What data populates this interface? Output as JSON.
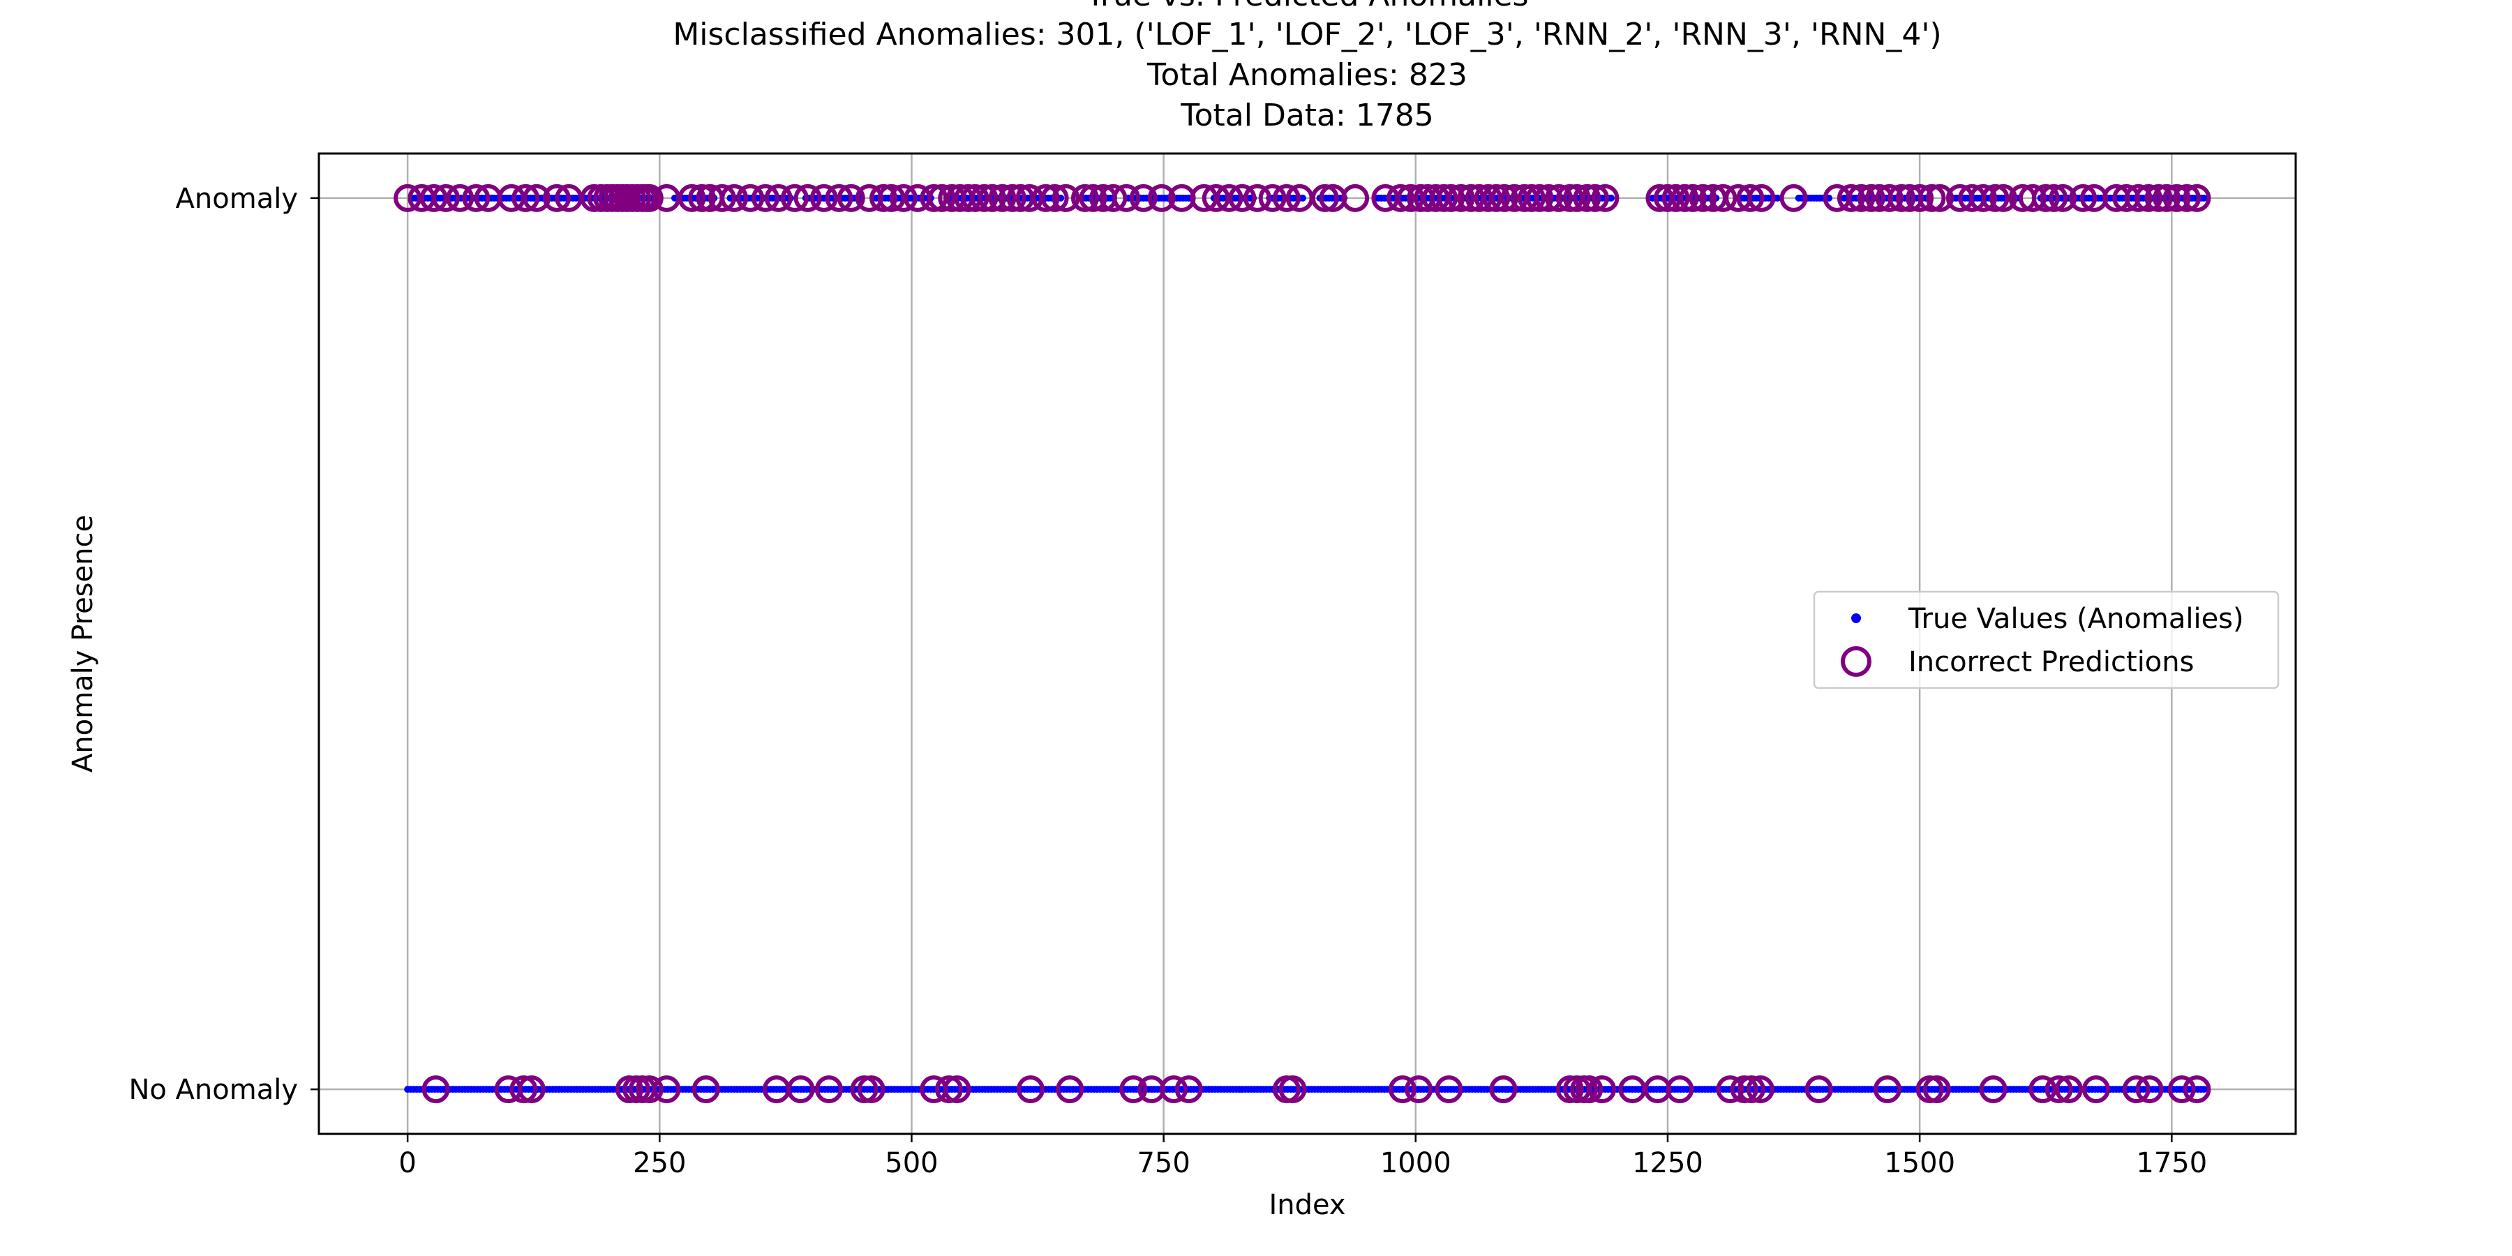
{
  "chart_data": {
    "type": "scatter",
    "title_lines": [
      "True vs. Predicted Anomalies",
      "Misclassified Anomalies: 301, ('LOF_1', 'LOF_2', 'LOF_3', 'RNN_2', 'RNN_3', 'RNN_4')",
      "Total Anomalies: 823",
      "Total Data: 1785"
    ],
    "xlabel": "Index",
    "ylabel": "Anomaly Presence",
    "xlim": [
      -88,
      1873
    ],
    "ylim": [
      -0.05,
      1.05
    ],
    "x_ticks": [
      0,
      250,
      500,
      750,
      1000,
      1250,
      1500,
      1750
    ],
    "x_tick_labels": [
      "0",
      "250",
      "500",
      "750",
      "1000",
      "1250",
      "1500",
      "1750"
    ],
    "y_ticks": [
      0,
      1
    ],
    "y_tick_labels": [
      "No Anomaly",
      "Anomaly"
    ],
    "grid": true,
    "legend_position": "center-right",
    "colors": {
      "true_values": "#0000ff",
      "incorrect": "#800080"
    },
    "series": [
      {
        "name": "True Values (Anomalies)",
        "marker": "point",
        "note_x_range": [
          0,
          1784
        ],
        "segments": {
          "anomaly": [
            [
              5,
              245
            ],
            [
              265,
              305
            ],
            [
              320,
              380
            ],
            [
              395,
              450
            ],
            [
              462,
              520
            ],
            [
              540,
              650
            ],
            [
              670,
              700
            ],
            [
              715,
              780
            ],
            [
              800,
              840
            ],
            [
              855,
              890
            ],
            [
              905,
              930
            ],
            [
              960,
              1195
            ],
            [
              1235,
              1300
            ],
            [
              1320,
              1360
            ],
            [
              1380,
              1410
            ],
            [
              1425,
              1510
            ],
            [
              1530,
              1600
            ],
            [
              1620,
              1784
            ]
          ],
          "no_anomaly": [
            [
              0,
              1784
            ]
          ]
        }
      },
      {
        "name": "Incorrect Predictions",
        "marker": "circle-open",
        "points_anomaly": [
          0,
          14,
          26,
          38,
          52,
          68,
          80,
          103,
          117,
          128,
          148,
          160,
          185,
          192,
          198,
          203,
          208,
          213,
          218,
          223,
          228,
          233,
          237,
          240,
          257,
          282,
          292,
          300,
          312,
          324,
          340,
          355,
          368,
          384,
          397,
          413,
          428,
          440,
          458,
          472,
          480,
          492,
          506,
          522,
          530,
          540,
          548,
          556,
          563,
          572,
          580,
          590,
          600,
          608,
          617,
          633,
          642,
          653,
          672,
          680,
          690,
          700,
          713,
          730,
          748,
          768,
          790,
          802,
          815,
          828,
          843,
          858,
          872,
          885,
          910,
          918,
          940,
          970,
          985,
          995,
          1005,
          1012,
          1020,
          1028,
          1035,
          1045,
          1055,
          1063,
          1072,
          1080,
          1088,
          1098,
          1108,
          1115,
          1123,
          1132,
          1142,
          1153,
          1160,
          1170,
          1178,
          1188,
          1242,
          1250,
          1258,
          1267,
          1275,
          1285,
          1295,
          1305,
          1320,
          1332,
          1343,
          1375,
          1418,
          1432,
          1442,
          1452,
          1460,
          1470,
          1482,
          1490,
          1500,
          1512,
          1520,
          1540,
          1552,
          1563,
          1575,
          1583,
          1602,
          1612,
          1625,
          1633,
          1642,
          1662,
          1673,
          1695,
          1705,
          1717,
          1727,
          1737,
          1745,
          1755,
          1765,
          1775
        ],
        "points_no_anomaly": [
          28,
          100,
          115,
          123,
          220,
          227,
          233,
          240,
          257,
          296,
          366,
          390,
          418,
          453,
          460,
          522,
          537,
          545,
          618,
          657,
          720,
          738,
          760,
          775,
          872,
          878,
          987,
          1003,
          1033,
          1087,
          1153,
          1160,
          1167,
          1172,
          1185,
          1215,
          1240,
          1262,
          1312,
          1326,
          1333,
          1342,
          1400,
          1468,
          1510,
          1517,
          1573,
          1622,
          1638,
          1648,
          1675,
          1715,
          1728,
          1760,
          1775
        ]
      }
    ]
  }
}
